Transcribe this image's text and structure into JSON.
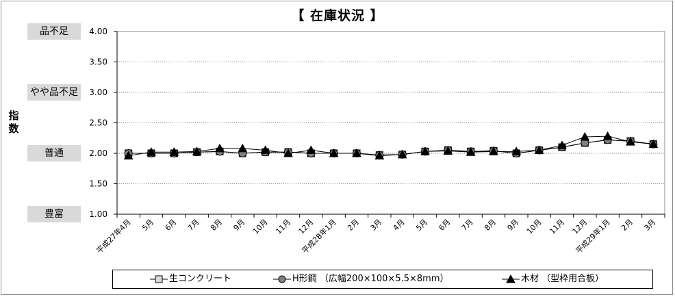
{
  "chart_data": {
    "type": "line",
    "title": "【 在庫状況 】",
    "ylabel": "指数",
    "ylim": [
      1.0,
      4.0
    ],
    "yticks": [
      "1.00",
      "1.50",
      "2.00",
      "2.50",
      "3.00",
      "3.50",
      "4.00"
    ],
    "grid": true,
    "legend_position": "bottom",
    "level_labels": [
      {
        "label": "品不足",
        "value": 4.0
      },
      {
        "label": "やや品不足",
        "value": 3.0
      },
      {
        "label": "普通",
        "value": 2.0
      },
      {
        "label": "豊富",
        "value": 1.0
      }
    ],
    "categories": [
      "平成27年4月",
      "5月",
      "6月",
      "7月",
      "8月",
      "9月",
      "10月",
      "11月",
      "12月",
      "平成28年1月",
      "2月",
      "3月",
      "4月",
      "5月",
      "6月",
      "7月",
      "8月",
      "9月",
      "10月",
      "11月",
      "12月",
      "平成29年1月",
      "2月",
      "3月"
    ],
    "series": [
      {
        "name": "生コンクリート",
        "marker": "square",
        "color": "#a6a6a6",
        "values": [
          2.0,
          2.0,
          2.0,
          2.02,
          2.03,
          2.0,
          2.02,
          2.02,
          2.0,
          2.0,
          2.0,
          1.97,
          1.98,
          2.03,
          2.05,
          2.03,
          2.04,
          2.0,
          2.05,
          2.1,
          2.17,
          2.22,
          2.2,
          2.15
        ]
      },
      {
        "name": "H形鋼 （広幅200×100×5.5×8mm）",
        "marker": "circle",
        "color": "#808080",
        "values": [
          2.0,
          2.0,
          2.0,
          2.02,
          2.03,
          2.0,
          2.02,
          2.02,
          2.0,
          2.0,
          2.0,
          1.97,
          1.98,
          2.03,
          2.05,
          2.03,
          2.04,
          2.0,
          2.05,
          2.1,
          2.17,
          2.22,
          2.2,
          2.15
        ]
      },
      {
        "name": "木材 （型枠用合板）",
        "marker": "triangle",
        "color": "#000000",
        "values": [
          1.96,
          2.02,
          2.02,
          2.03,
          2.08,
          2.08,
          2.05,
          2.0,
          2.05,
          2.0,
          2.0,
          1.96,
          1.98,
          2.03,
          2.04,
          2.02,
          2.03,
          2.03,
          2.05,
          2.13,
          2.27,
          2.28,
          2.19,
          2.15
        ]
      }
    ]
  }
}
